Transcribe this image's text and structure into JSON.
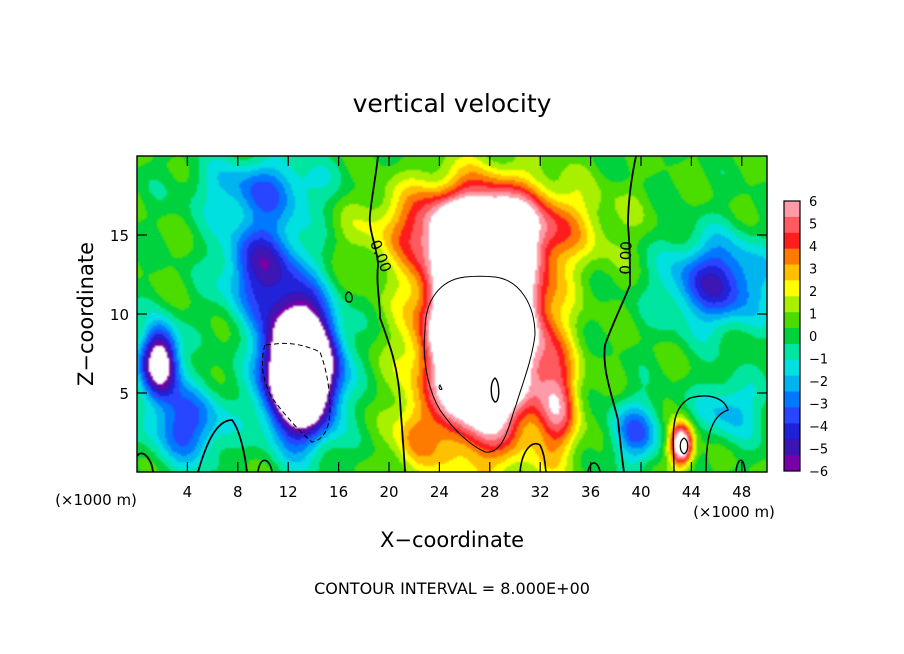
{
  "chart_data": {
    "type": "heatmap",
    "title": "vertical velocity",
    "xlabel": "X−coordinate",
    "ylabel": "Z−coordinate",
    "x_unit_label": "(×1000 m)",
    "footer": "CONTOUR INTERVAL = 8.000E+00",
    "xlim": [
      0,
      50
    ],
    "ylim": [
      0,
      20
    ],
    "x_ticks": [
      4,
      8,
      12,
      16,
      20,
      24,
      28,
      32,
      36,
      40,
      44,
      48
    ],
    "y_ticks": [
      5,
      10,
      15
    ],
    "x_tick_labels": [
      "4",
      "8",
      "12",
      "16",
      "20",
      "24",
      "28",
      "32",
      "36",
      "40",
      "44",
      "48"
    ],
    "y_tick_labels": [
      "5",
      "10",
      "15"
    ],
    "colorbar": {
      "range": [
        -6,
        6
      ],
      "ticks": [
        6,
        5,
        4,
        3,
        2,
        1,
        0,
        -1,
        -2,
        -3,
        -4,
        -5,
        -6
      ],
      "tick_labels": [
        "6",
        "5",
        "4",
        "3",
        "2",
        "1",
        "0",
        "−1",
        "−2",
        "−3",
        "−4",
        "−5",
        "−6"
      ],
      "colors_top_to_bottom": [
        "#ff9aa8",
        "#ff5a60",
        "#ff1e1e",
        "#ff7a00",
        "#ffc000",
        "#ffff00",
        "#a8f000",
        "#4cdc00",
        "#00d23c",
        "#00e6a0",
        "#00e0e0",
        "#00b4f0",
        "#0078ff",
        "#2846ff",
        "#2020d8",
        "#3c14b4",
        "#7800a8"
      ]
    },
    "contour_labels": [
      "0.00",
      "0.00"
    ],
    "features": [
      {
        "kind": "updraft",
        "x_center": 27.5,
        "z_center": 9,
        "peak": 16,
        "note": "white core exceeds colour scale"
      },
      {
        "kind": "updraft",
        "x_center": 43.2,
        "z_center": 1.7,
        "peak": 8
      },
      {
        "kind": "downdraft",
        "x_center": 13,
        "z_center": 6.5,
        "peak": -16
      },
      {
        "kind": "downdraft",
        "x_center": 1.8,
        "z_center": 7,
        "peak": -8
      },
      {
        "kind": "downdraft",
        "x_center": 10,
        "z_center": 13,
        "peak": -5
      },
      {
        "kind": "downdraft",
        "x_center": 46,
        "z_center": 12,
        "peak": -4.5
      }
    ]
  }
}
